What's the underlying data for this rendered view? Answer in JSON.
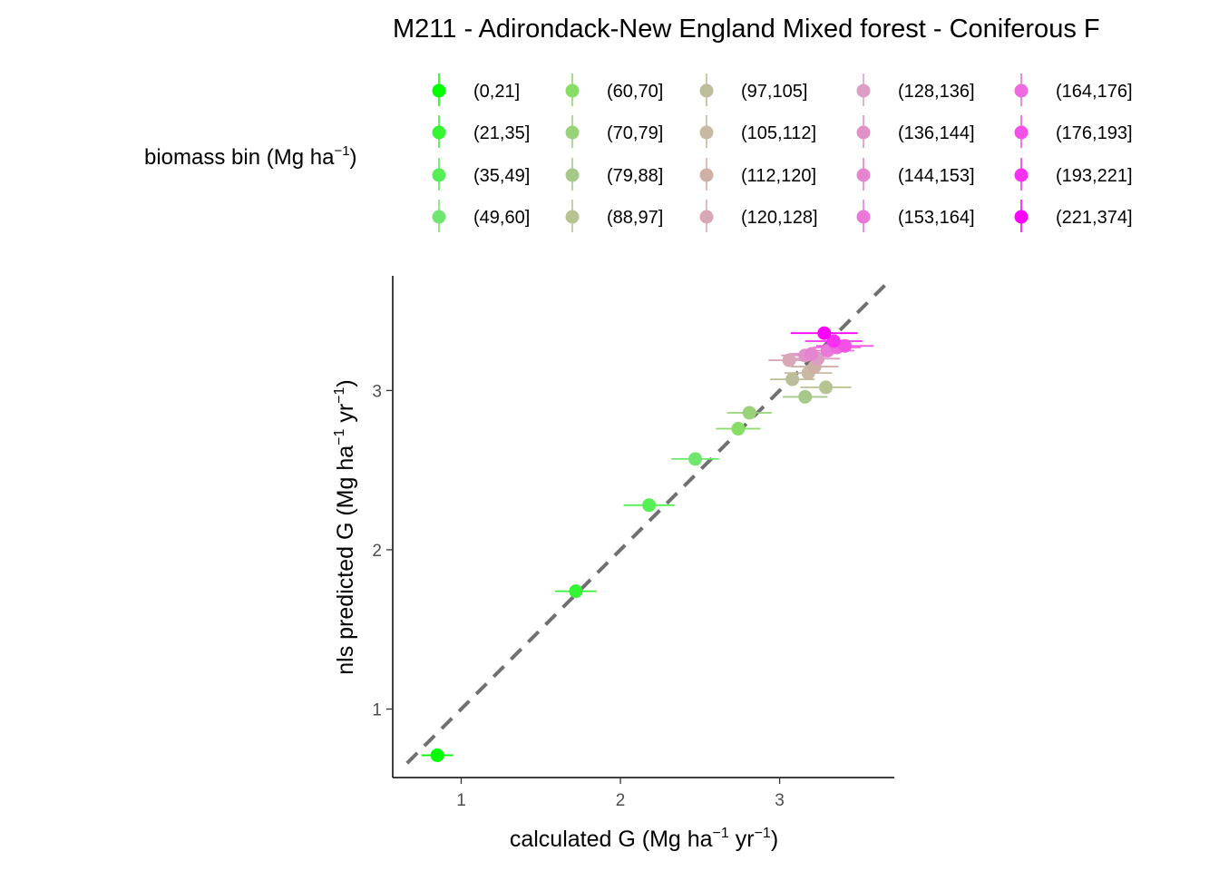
{
  "chart_data": {
    "type": "scatter",
    "title": "M211 - Adirondack-New England Mixed forest - Coniferous F",
    "xlabel": {
      "main": "calculated G (Mg ha",
      "sup1": "−1",
      "mid": " yr",
      "sup2": "−1",
      "end": ")"
    },
    "ylabel": {
      "main": "nls predicted G (Mg ha",
      "sup1": "−1",
      "mid": " yr",
      "sup2": "−1",
      "end": ")"
    },
    "xlim": [
      0.57,
      3.72
    ],
    "ylim": [
      0.57,
      3.72
    ],
    "xticks": [
      {
        "value": 1,
        "label": "1"
      },
      {
        "value": 2,
        "label": "2"
      },
      {
        "value": 3,
        "label": "3"
      }
    ],
    "yticks": [
      {
        "value": 1,
        "label": "1"
      },
      {
        "value": 2,
        "label": "2"
      },
      {
        "value": 3,
        "label": "3"
      }
    ],
    "grid": false,
    "reference_line": {
      "slope": 1,
      "intercept": 0,
      "style": "dashed",
      "color": "#707070"
    },
    "legend": {
      "title": {
        "main": "biomass bin (Mg ha",
        "sup": "−1",
        "end": ")"
      },
      "placement": "top",
      "columns": 5
    },
    "series": [
      {
        "name": "(0,21]",
        "color": "#00FF00",
        "x": 0.85,
        "y": 0.71,
        "xerr": 0.1
      },
      {
        "name": "(21,35]",
        "color": "#33F533",
        "x": 1.72,
        "y": 1.74,
        "xerr": 0.13
      },
      {
        "name": "(35,49]",
        "color": "#55EE55",
        "x": 2.18,
        "y": 2.28,
        "xerr": 0.16
      },
      {
        "name": "(49,60]",
        "color": "#70E670",
        "x": 2.47,
        "y": 2.57,
        "xerr": 0.15
      },
      {
        "name": "(60,70]",
        "color": "#88DD66",
        "x": 2.74,
        "y": 2.76,
        "xerr": 0.14
      },
      {
        "name": "(70,79]",
        "color": "#99D27A",
        "x": 2.81,
        "y": 2.86,
        "xerr": 0.14
      },
      {
        "name": "(79,88]",
        "color": "#A6C98A",
        "x": 3.16,
        "y": 2.96,
        "xerr": 0.14
      },
      {
        "name": "(88,97]",
        "color": "#B5C490",
        "x": 3.29,
        "y": 3.02,
        "xerr": 0.16
      },
      {
        "name": "(97,105]",
        "color": "#BDBD99",
        "x": 3.08,
        "y": 3.07,
        "xerr": 0.14
      },
      {
        "name": "(105,112]",
        "color": "#C7B9A2",
        "x": 3.18,
        "y": 3.11,
        "xerr": 0.15
      },
      {
        "name": "(112,120]",
        "color": "#D0AFA6",
        "x": 3.22,
        "y": 3.15,
        "xerr": 0.15
      },
      {
        "name": "(120,128]",
        "color": "#D8A8B6",
        "x": 3.06,
        "y": 3.19,
        "xerr": 0.13
      },
      {
        "name": "(128,136]",
        "color": "#DC9EC2",
        "x": 3.24,
        "y": 3.2,
        "xerr": 0.14
      },
      {
        "name": "(136,144]",
        "color": "#E092C8",
        "x": 3.16,
        "y": 3.22,
        "xerr": 0.15
      },
      {
        "name": "(144,153]",
        "color": "#E585D0",
        "x": 3.2,
        "y": 3.23,
        "xerr": 0.14
      },
      {
        "name": "(153,164]",
        "color": "#EA78D8",
        "x": 3.3,
        "y": 3.25,
        "xerr": 0.17
      },
      {
        "name": "(164,176]",
        "color": "#EE6ADE",
        "x": 3.36,
        "y": 3.27,
        "xerr": 0.15
      },
      {
        "name": "(176,193]",
        "color": "#F350E6",
        "x": 3.41,
        "y": 3.28,
        "xerr": 0.18
      },
      {
        "name": "(193,221]",
        "color": "#F830F0",
        "x": 3.34,
        "y": 3.31,
        "xerr": 0.18
      },
      {
        "name": "(221,374]",
        "color": "#FF00FF",
        "x": 3.28,
        "y": 3.36,
        "xerr": 0.21
      }
    ]
  }
}
